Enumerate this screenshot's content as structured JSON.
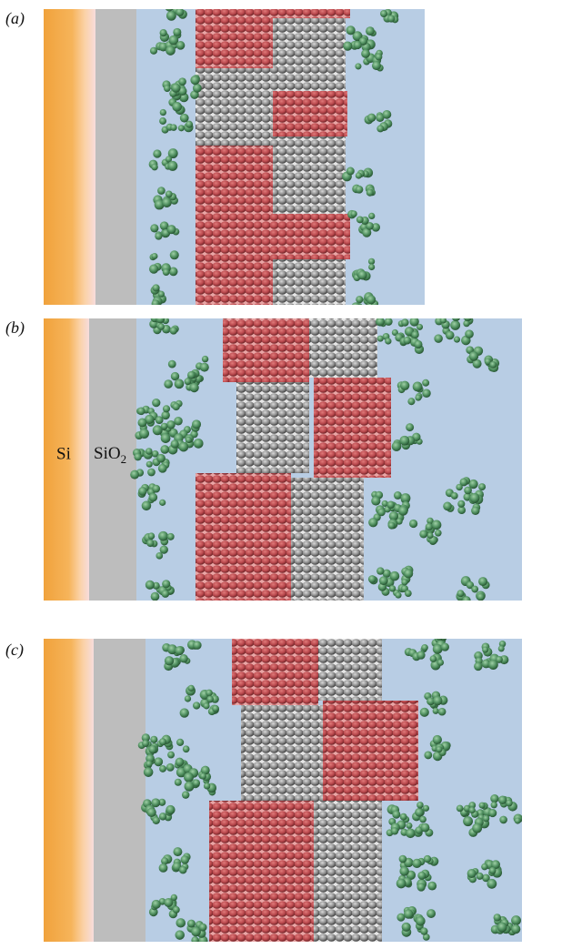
{
  "panels": [
    {
      "label": "(a)"
    },
    {
      "label": "(b)",
      "annotations": {
        "substrate": "Si",
        "oxide": "SiO",
        "oxide_subscript": "2"
      }
    },
    {
      "label": "(c)"
    }
  ]
}
